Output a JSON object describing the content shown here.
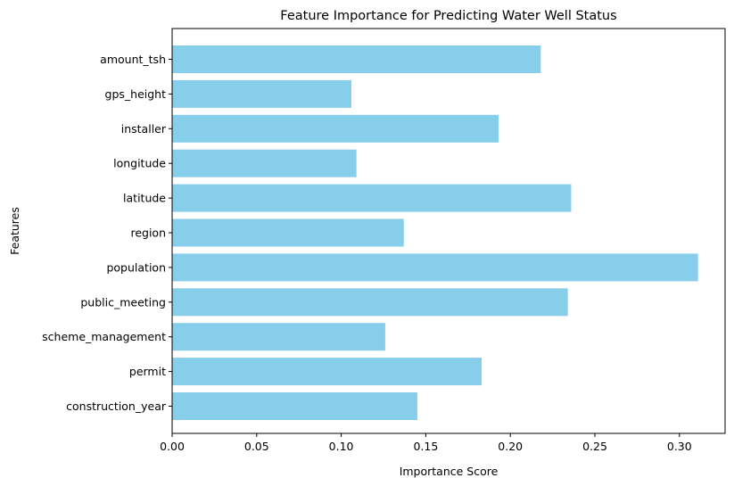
{
  "chart_data": {
    "type": "bar",
    "orientation": "horizontal",
    "title": "Feature Importance for Predicting Water Well Status",
    "xlabel": "Importance Score",
    "ylabel": "Features",
    "categories": [
      "amount_tsh",
      "gps_height",
      "installer",
      "longitude",
      "latitude",
      "region",
      "population",
      "public_meeting",
      "scheme_management",
      "permit",
      "construction_year"
    ],
    "values": [
      0.218,
      0.106,
      0.193,
      0.109,
      0.236,
      0.137,
      0.311,
      0.234,
      0.126,
      0.183,
      0.145
    ],
    "xlim": [
      0,
      0.327
    ],
    "xticks": [
      "0.00",
      "0.05",
      "0.10",
      "0.15",
      "0.20",
      "0.25",
      "0.30"
    ],
    "xtick_values": [
      0,
      0.05,
      0.1,
      0.15,
      0.2,
      0.25,
      0.3
    ],
    "bar_color": "#87CEEB",
    "grid": false,
    "legend": "none"
  }
}
